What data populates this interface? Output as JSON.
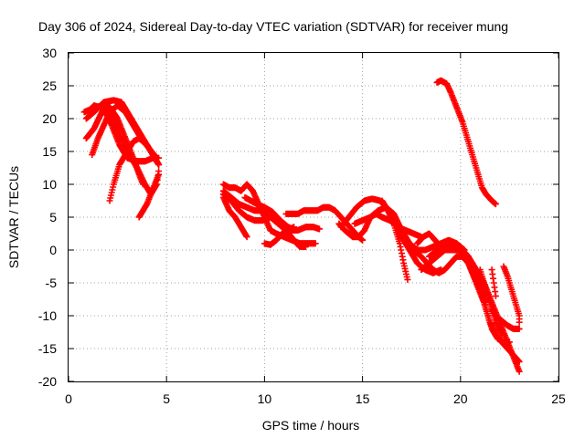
{
  "chart_data": {
    "type": "scatter",
    "title": "Day 306 of 2024, Sidereal Day-to-day VTEC variation (SDTVAR) for receiver mung",
    "xlabel": "GPS time / hours",
    "ylabel": "SDTVAR / TECUs",
    "xlim": [
      0,
      25
    ],
    "ylim": [
      -20,
      30
    ],
    "x_ticks": [
      0,
      5,
      10,
      15,
      20,
      25
    ],
    "y_ticks": [
      -20,
      -15,
      -10,
      -5,
      0,
      5,
      10,
      15,
      20,
      25,
      30
    ],
    "grid": true,
    "marker": "+",
    "color": "#ff0000",
    "series": [
      {
        "points": [
          [
            0.8,
            21
          ],
          [
            1.2,
            21.5
          ],
          [
            1.7,
            22
          ],
          [
            2.1,
            21.8
          ],
          [
            2.5,
            20
          ],
          [
            2.9,
            17
          ],
          [
            3.3,
            14
          ],
          [
            3.6,
            11.5
          ],
          [
            3.8,
            10
          ]
        ]
      },
      {
        "points": [
          [
            0.9,
            20
          ],
          [
            1.3,
            21
          ],
          [
            1.8,
            22.5
          ],
          [
            2.3,
            22.8
          ],
          [
            2.7,
            22.5
          ],
          [
            3.1,
            20.5
          ],
          [
            3.5,
            18.5
          ],
          [
            3.9,
            16.5
          ],
          [
            4.3,
            14.5
          ],
          [
            4.6,
            13
          ]
        ]
      },
      {
        "points": [
          [
            1.0,
            21
          ],
          [
            1.3,
            22
          ],
          [
            1.8,
            21.5
          ],
          [
            2.2,
            19
          ],
          [
            2.6,
            16
          ],
          [
            3.0,
            14
          ],
          [
            3.5,
            13.5
          ],
          [
            3.9,
            13.5
          ],
          [
            4.3,
            14
          ],
          [
            4.6,
            14
          ]
        ]
      },
      {
        "points": [
          [
            0.9,
            17
          ],
          [
            1.3,
            18.5
          ],
          [
            1.7,
            21
          ],
          [
            2.0,
            21.5
          ],
          [
            2.3,
            20
          ],
          [
            2.6,
            17.5
          ],
          [
            3.0,
            15
          ],
          [
            3.5,
            12.5
          ],
          [
            3.9,
            10
          ],
          [
            4.2,
            8.5
          ],
          [
            4.5,
            10
          ],
          [
            4.6,
            12
          ]
        ]
      },
      {
        "points": [
          [
            1.2,
            14.5
          ],
          [
            1.5,
            17
          ],
          [
            1.8,
            19
          ],
          [
            2.1,
            21
          ],
          [
            2.5,
            22
          ],
          [
            2.9,
            21
          ],
          [
            3.3,
            19
          ],
          [
            3.7,
            17
          ],
          [
            4.1,
            15.5
          ],
          [
            4.5,
            14
          ]
        ]
      },
      {
        "points": [
          [
            2.1,
            7.5
          ],
          [
            2.3,
            10
          ],
          [
            2.6,
            13
          ],
          [
            3.0,
            15
          ],
          [
            3.3,
            16.5
          ],
          [
            3.6,
            17
          ],
          [
            4.0,
            16
          ],
          [
            4.3,
            14.5
          ],
          [
            4.6,
            13
          ]
        ]
      },
      {
        "points": [
          [
            3.6,
            5
          ],
          [
            3.8,
            6
          ],
          [
            4.0,
            7
          ],
          [
            4.2,
            8.5
          ],
          [
            4.4,
            10
          ],
          [
            4.6,
            11.5
          ]
        ]
      },
      {
        "points": [
          [
            7.9,
            10
          ],
          [
            8.2,
            9.5
          ],
          [
            8.5,
            9.5
          ],
          [
            8.8,
            9
          ],
          [
            9.1,
            10
          ],
          [
            9.4,
            9
          ],
          [
            9.7,
            7
          ],
          [
            10.0,
            5
          ],
          [
            10.3,
            3
          ],
          [
            10.6,
            2.5
          ],
          [
            11.0,
            2
          ],
          [
            11.4,
            1.5
          ],
          [
            11.8,
            1
          ],
          [
            12.2,
            1
          ],
          [
            12.6,
            1
          ]
        ]
      },
      {
        "points": [
          [
            7.9,
            9
          ],
          [
            8.3,
            8
          ],
          [
            8.7,
            7
          ],
          [
            9.1,
            6.5
          ],
          [
            9.5,
            6
          ],
          [
            9.9,
            6
          ],
          [
            10.3,
            5
          ],
          [
            10.7,
            4
          ],
          [
            11.1,
            3
          ],
          [
            11.5,
            1.5
          ],
          [
            11.8,
            0.5
          ],
          [
            12.1,
            0.5
          ]
        ]
      },
      {
        "points": [
          [
            7.9,
            8
          ],
          [
            8.2,
            6
          ],
          [
            8.5,
            5
          ],
          [
            8.8,
            3.5
          ],
          [
            9.1,
            2
          ]
        ]
      },
      {
        "points": [
          [
            7.9,
            8.5
          ],
          [
            8.3,
            7.5
          ],
          [
            8.7,
            6
          ],
          [
            9.1,
            5
          ],
          [
            9.5,
            4.5
          ],
          [
            9.9,
            4.5
          ],
          [
            10.3,
            5
          ],
          [
            10.6,
            4.8
          ],
          [
            11.0,
            4
          ],
          [
            11.3,
            3
          ],
          [
            11.7,
            3
          ],
          [
            12.1,
            3.5
          ],
          [
            12.5,
            3.5
          ],
          [
            12.8,
            3.2
          ]
        ]
      },
      {
        "points": [
          [
            9.0,
            8
          ],
          [
            9.3,
            7.5
          ],
          [
            9.6,
            7
          ],
          [
            10.0,
            6.5
          ],
          [
            10.4,
            5.8
          ],
          [
            10.8,
            4.5
          ],
          [
            11.2,
            3.5
          ],
          [
            11.6,
            3
          ]
        ]
      },
      {
        "points": [
          [
            10.0,
            1
          ],
          [
            10.3,
            0.8
          ],
          [
            10.6,
            1.5
          ],
          [
            10.9,
            2.5
          ],
          [
            11.2,
            3
          ],
          [
            11.5,
            3.5
          ]
        ]
      },
      {
        "points": [
          [
            11.1,
            5.5
          ],
          [
            11.4,
            5.5
          ],
          [
            11.7,
            5.5
          ],
          [
            12.0,
            6
          ],
          [
            12.4,
            6
          ],
          [
            12.7,
            6
          ],
          [
            13.0,
            6.5
          ],
          [
            13.3,
            6.5
          ],
          [
            13.6,
            6
          ],
          [
            13.9,
            5
          ],
          [
            14.2,
            4
          ],
          [
            14.5,
            3
          ],
          [
            14.8,
            2
          ],
          [
            15.0,
            1.5
          ]
        ]
      },
      {
        "points": [
          [
            13.8,
            4
          ],
          [
            14.1,
            3
          ],
          [
            14.5,
            2
          ],
          [
            14.8,
            2
          ],
          [
            15.1,
            3
          ],
          [
            15.4,
            5
          ],
          [
            15.7,
            5.5
          ],
          [
            16.0,
            5
          ],
          [
            16.4,
            4.5
          ],
          [
            16.8,
            3.5
          ],
          [
            17.2,
            3
          ],
          [
            17.6,
            2.5
          ],
          [
            18.0,
            2
          ]
        ]
      },
      {
        "points": [
          [
            13.9,
            3.5
          ],
          [
            14.3,
            5
          ],
          [
            14.7,
            6.5
          ],
          [
            15.1,
            7.5
          ],
          [
            15.5,
            7.8
          ],
          [
            15.9,
            7.5
          ],
          [
            16.2,
            6.5
          ],
          [
            16.6,
            4.5
          ],
          [
            17.0,
            2
          ],
          [
            17.4,
            0
          ],
          [
            17.8,
            -2
          ],
          [
            18.2,
            -3
          ],
          [
            18.6,
            -3.5
          ],
          [
            19.0,
            -3
          ]
        ]
      },
      {
        "points": [
          [
            14.6,
            4
          ],
          [
            15.0,
            4.5
          ],
          [
            15.4,
            5
          ],
          [
            15.8,
            6
          ],
          [
            16.2,
            6.5
          ],
          [
            16.6,
            5.5
          ],
          [
            17.0,
            3
          ],
          [
            17.4,
            1
          ],
          [
            17.8,
            0
          ],
          [
            18.2,
            0
          ],
          [
            18.6,
            0.5
          ],
          [
            19.0,
            1
          ],
          [
            19.4,
            1.5
          ],
          [
            19.8,
            1
          ],
          [
            20.2,
            0
          ]
        ]
      },
      {
        "points": [
          [
            16.0,
            7.5
          ],
          [
            16.3,
            6
          ],
          [
            16.6,
            4
          ],
          [
            16.9,
            1
          ],
          [
            17.1,
            -2
          ],
          [
            17.3,
            -4.5
          ]
        ]
      },
      {
        "points": [
          [
            17.0,
            2
          ],
          [
            17.3,
            1
          ],
          [
            17.6,
            0
          ],
          [
            18.0,
            -1
          ],
          [
            18.3,
            -2
          ],
          [
            18.6,
            -3
          ],
          [
            18.9,
            -3.5
          ],
          [
            19.2,
            -3
          ],
          [
            19.5,
            -2
          ],
          [
            19.8,
            -1
          ],
          [
            20.1,
            -1
          ],
          [
            20.4,
            -2
          ],
          [
            20.7,
            -4
          ],
          [
            21.0,
            -6
          ],
          [
            21.3,
            -8
          ]
        ]
      },
      {
        "points": [
          [
            17.8,
            1
          ],
          [
            18.1,
            2
          ],
          [
            18.4,
            2.5
          ],
          [
            18.7,
            1.5
          ],
          [
            19.0,
            0.5
          ],
          [
            19.3,
            0
          ],
          [
            19.6,
            0
          ],
          [
            19.9,
            0
          ],
          [
            20.2,
            -0.5
          ],
          [
            20.6,
            -2
          ],
          [
            21.0,
            -4
          ],
          [
            21.4,
            -7
          ],
          [
            21.8,
            -11
          ],
          [
            22.1,
            -13
          ]
        ]
      },
      {
        "points": [
          [
            18.0,
            -3
          ],
          [
            18.4,
            -2
          ],
          [
            18.8,
            -1
          ],
          [
            19.2,
            0
          ],
          [
            19.6,
            0.5
          ],
          [
            20.0,
            0
          ],
          [
            20.4,
            -1
          ],
          [
            20.8,
            -3
          ],
          [
            21.2,
            -5
          ],
          [
            21.6,
            -8
          ],
          [
            22.0,
            -11
          ],
          [
            22.4,
            -14
          ],
          [
            22.8,
            -17
          ],
          [
            23.0,
            -18.5
          ]
        ]
      },
      {
        "points": [
          [
            18.4,
            -1
          ],
          [
            18.8,
            0
          ],
          [
            19.2,
            1
          ],
          [
            19.6,
            1
          ],
          [
            20.0,
            0
          ],
          [
            20.4,
            -2
          ],
          [
            20.8,
            -5
          ],
          [
            21.2,
            -8
          ],
          [
            21.5,
            -11
          ],
          [
            21.8,
            -13
          ],
          [
            22.1,
            -14
          ],
          [
            22.4,
            -15
          ],
          [
            22.7,
            -16
          ],
          [
            23.0,
            -17
          ]
        ]
      },
      {
        "points": [
          [
            19.5,
            0
          ],
          [
            19.8,
            0.5
          ],
          [
            20.1,
            0
          ],
          [
            20.4,
            -1
          ],
          [
            20.7,
            -3
          ],
          [
            21.0,
            -6
          ],
          [
            21.3,
            -9
          ],
          [
            21.6,
            -12
          ],
          [
            21.9,
            -13.5
          ],
          [
            22.2,
            -14
          ],
          [
            22.5,
            -14
          ]
        ]
      },
      {
        "points": [
          [
            21.0,
            -3
          ],
          [
            21.2,
            -5
          ],
          [
            21.4,
            -7
          ],
          [
            21.6,
            -9
          ],
          [
            21.8,
            -10
          ],
          [
            22.0,
            -10.5
          ],
          [
            22.2,
            -11
          ],
          [
            22.4,
            -11.5
          ],
          [
            22.7,
            -12
          ],
          [
            23.0,
            -12
          ]
        ]
      },
      {
        "points": [
          [
            22.2,
            -2.5
          ],
          [
            22.4,
            -4
          ],
          [
            22.6,
            -6
          ],
          [
            22.8,
            -8
          ],
          [
            23.0,
            -10
          ],
          [
            23.0,
            -11
          ]
        ]
      },
      {
        "points": [
          [
            21.6,
            -3
          ],
          [
            21.7,
            -5
          ],
          [
            21.8,
            -7
          ]
        ]
      },
      {
        "points": [
          [
            18.8,
            25.5
          ],
          [
            19.0,
            25.8
          ],
          [
            19.3,
            25.3
          ],
          [
            19.5,
            24
          ],
          [
            19.7,
            22.5
          ],
          [
            19.9,
            21
          ],
          [
            20.1,
            19.5
          ],
          [
            20.3,
            17.5
          ],
          [
            20.5,
            15.5
          ],
          [
            20.7,
            13.5
          ],
          [
            20.9,
            11.5
          ],
          [
            21.1,
            9.5
          ],
          [
            21.3,
            8.5
          ],
          [
            21.6,
            7.5
          ],
          [
            21.8,
            7
          ]
        ]
      }
    ]
  }
}
